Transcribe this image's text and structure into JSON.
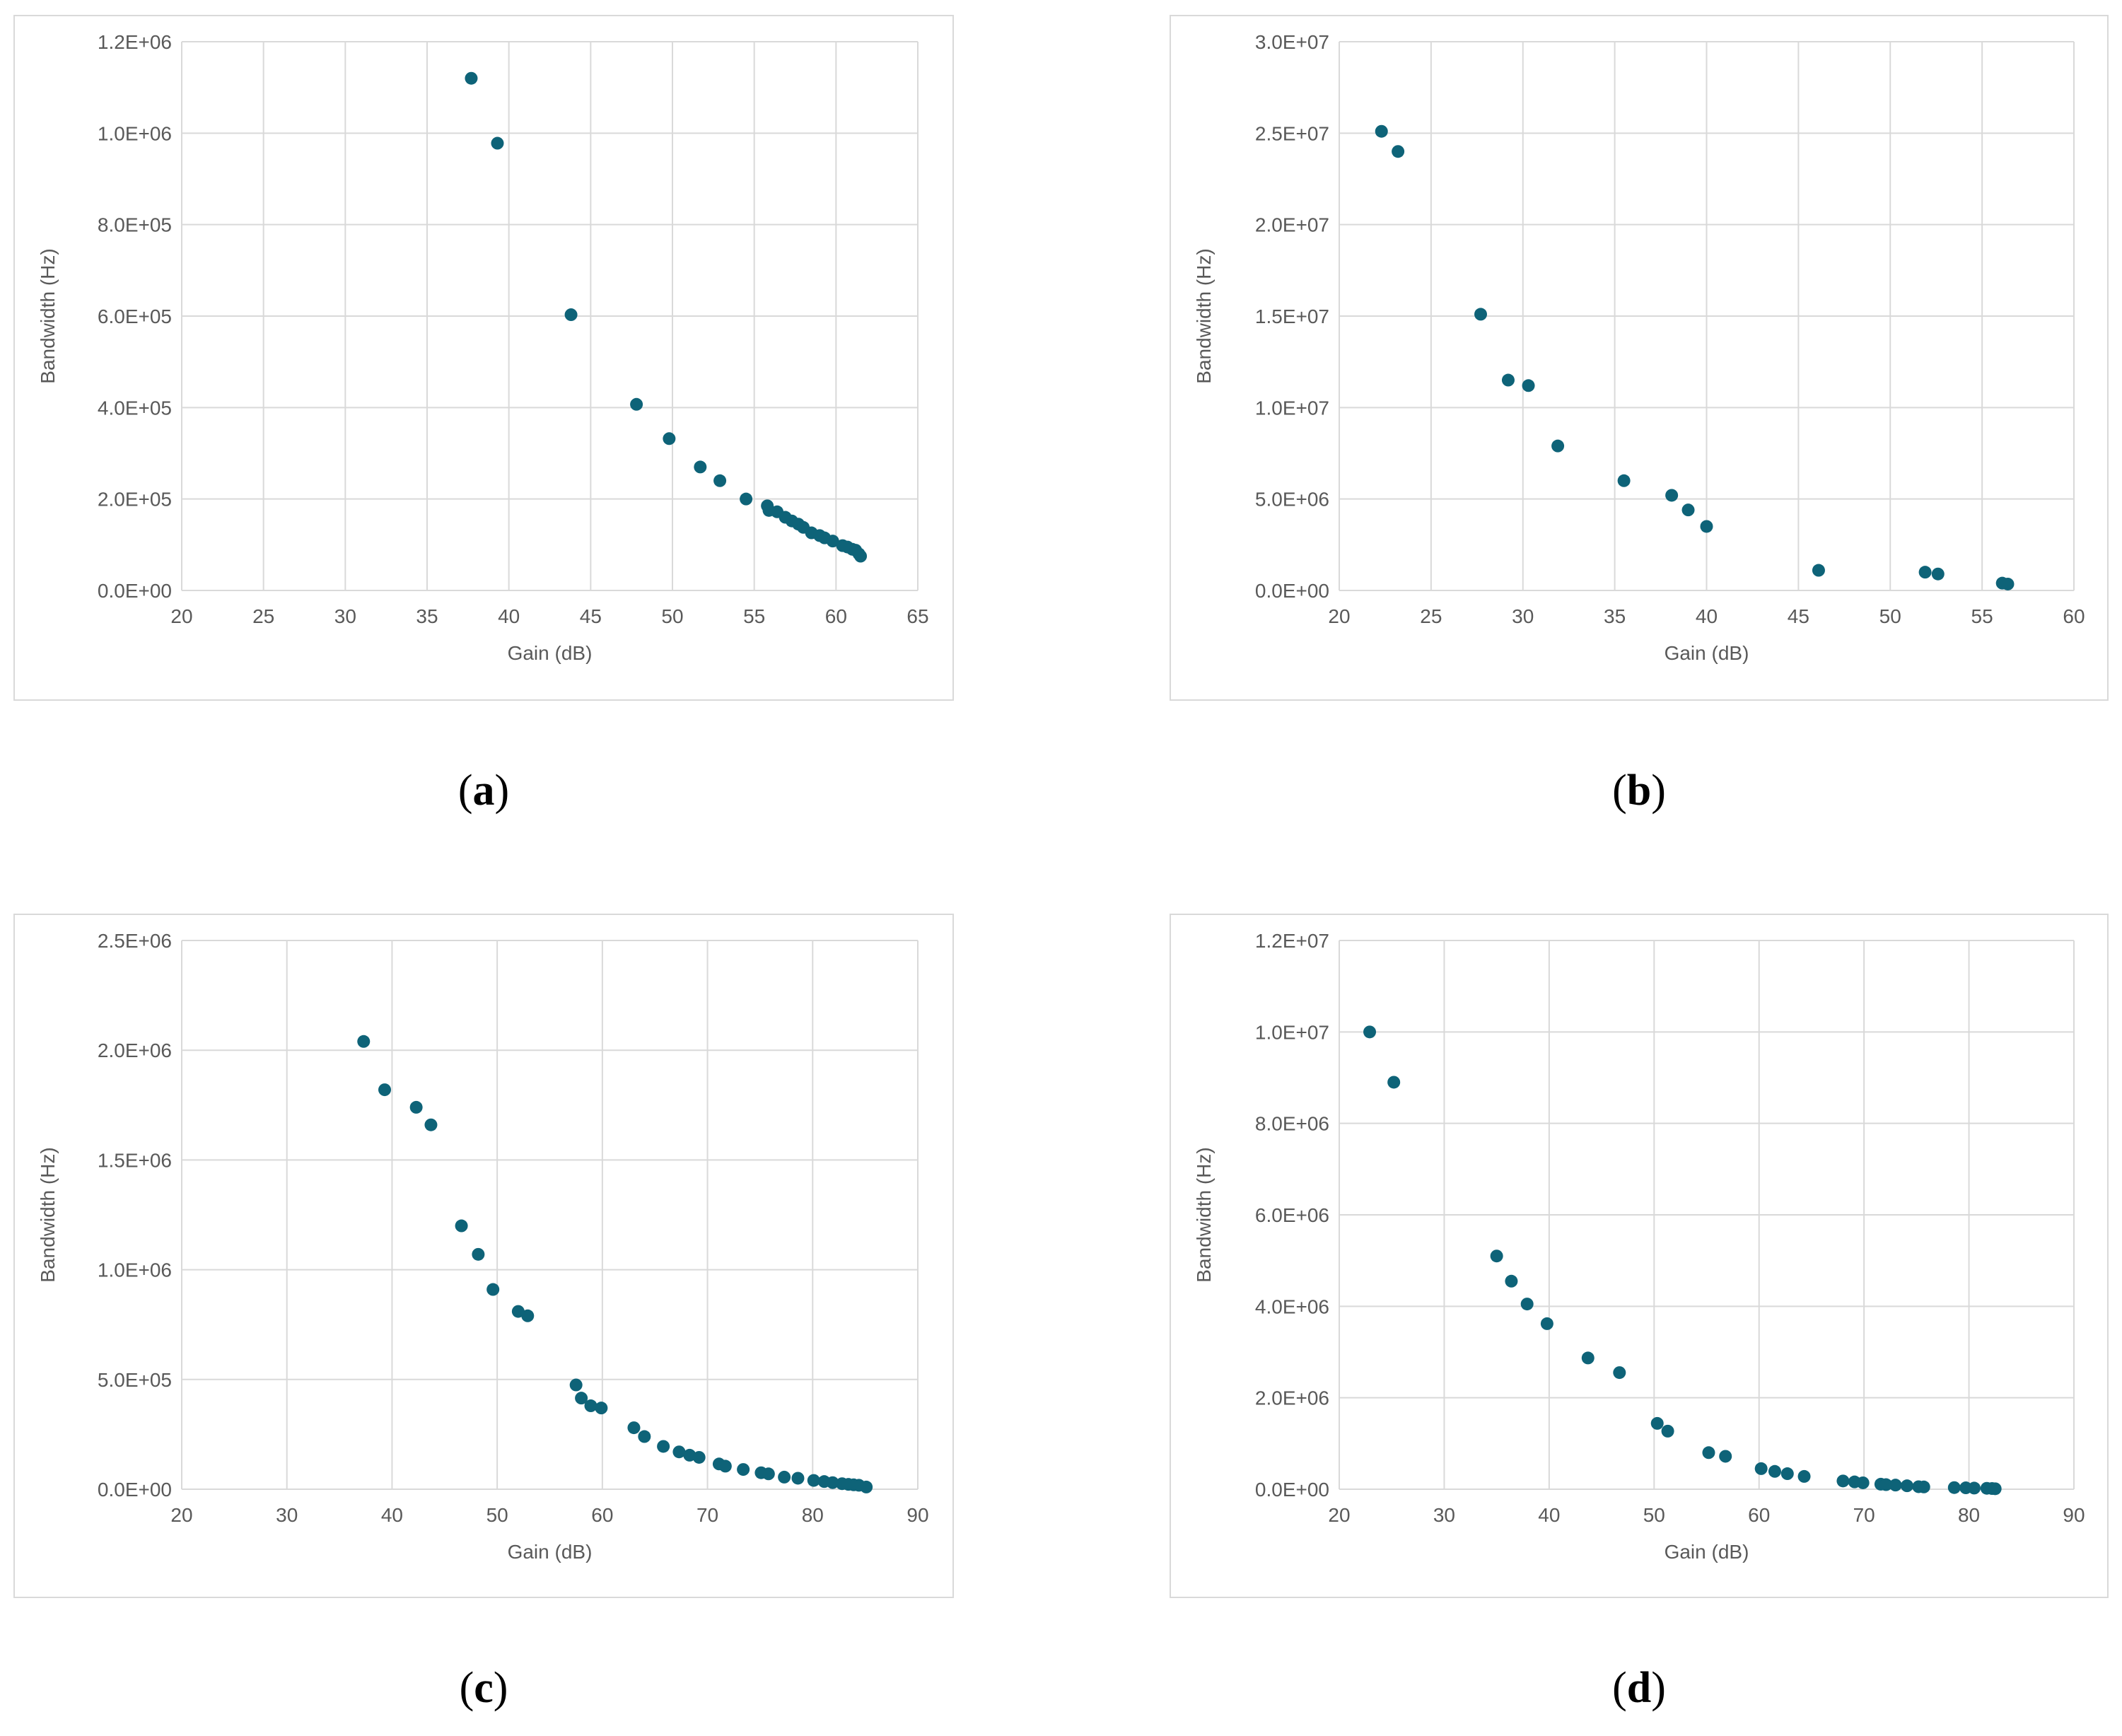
{
  "chart_data": [
    {
      "type": "scatter",
      "panel_label": "a",
      "xlabel": "Gain (dB)",
      "ylabel": "Bandwidth (Hz)",
      "xlim": [
        20,
        65
      ],
      "ylim": [
        0,
        1200000
      ],
      "xticks": [
        20,
        25,
        30,
        35,
        40,
        45,
        50,
        55,
        60,
        65
      ],
      "xtick_labels": [
        "20",
        "25",
        "30",
        "35",
        "40",
        "45",
        "50",
        "55",
        "60",
        "65"
      ],
      "yticks": [
        0,
        200000,
        400000,
        600000,
        800000,
        1000000,
        1200000
      ],
      "ytick_labels": [
        "0.0E+00",
        "2.0E+05",
        "4.0E+05",
        "6.0E+05",
        "8.0E+05",
        "1.0E+06",
        "1.2E+06"
      ],
      "grid": true,
      "marker_color": "#0e6378",
      "points": [
        [
          37.7,
          1120000
        ],
        [
          39.3,
          978000
        ],
        [
          43.8,
          603000
        ],
        [
          47.8,
          407000
        ],
        [
          49.8,
          332000
        ],
        [
          51.7,
          270000
        ],
        [
          52.9,
          240000
        ],
        [
          54.5,
          200000
        ],
        [
          55.8,
          185000
        ],
        [
          55.9,
          175000
        ],
        [
          56.4,
          172000
        ],
        [
          56.9,
          160000
        ],
        [
          57.3,
          152000
        ],
        [
          57.7,
          145000
        ],
        [
          58.0,
          138000
        ],
        [
          58.5,
          126000
        ],
        [
          59.0,
          120000
        ],
        [
          59.3,
          115000
        ],
        [
          59.8,
          108000
        ],
        [
          60.4,
          98000
        ],
        [
          60.7,
          95000
        ],
        [
          61.0,
          90000
        ],
        [
          61.2,
          88000
        ],
        [
          61.4,
          80000
        ],
        [
          61.5,
          75000
        ]
      ]
    },
    {
      "type": "scatter",
      "panel_label": "b",
      "xlabel": "Gain (dB)",
      "ylabel": "Bandwidth (Hz)",
      "xlim": [
        20,
        60
      ],
      "ylim": [
        0,
        30000000
      ],
      "xticks": [
        20,
        25,
        30,
        35,
        40,
        45,
        50,
        55,
        60
      ],
      "xtick_labels": [
        "20",
        "25",
        "30",
        "35",
        "40",
        "45",
        "50",
        "55",
        "60"
      ],
      "yticks": [
        0,
        5000000,
        10000000,
        15000000,
        20000000,
        25000000,
        30000000
      ],
      "ytick_labels": [
        "0.0E+00",
        "5.0E+06",
        "1.0E+07",
        "1.5E+07",
        "2.0E+07",
        "2.5E+07",
        "3.0E+07"
      ],
      "grid": true,
      "marker_color": "#0e6378",
      "points": [
        [
          22.3,
          25100000
        ],
        [
          23.2,
          24000000
        ],
        [
          27.7,
          15100000
        ],
        [
          29.2,
          11500000
        ],
        [
          30.3,
          11200000
        ],
        [
          31.9,
          7900000
        ],
        [
          35.5,
          6000000
        ],
        [
          38.1,
          5200000
        ],
        [
          39.0,
          4400000
        ],
        [
          40.0,
          3500000
        ],
        [
          46.1,
          1100000
        ],
        [
          51.9,
          1000000
        ],
        [
          52.6,
          900000
        ],
        [
          56.1,
          400000
        ],
        [
          56.4,
          350000
        ]
      ]
    },
    {
      "type": "scatter",
      "panel_label": "c",
      "xlabel": "Gain (dB)",
      "ylabel": "Bandwidth (Hz)",
      "xlim": [
        20,
        90
      ],
      "ylim": [
        0,
        2500000
      ],
      "xticks": [
        20,
        30,
        40,
        50,
        60,
        70,
        80,
        90
      ],
      "xtick_labels": [
        "20",
        "30",
        "40",
        "50",
        "60",
        "70",
        "80",
        "90"
      ],
      "yticks": [
        0,
        500000,
        1000000,
        1500000,
        2000000,
        2500000
      ],
      "ytick_labels": [
        "0.0E+00",
        "5.0E+05",
        "1.0E+06",
        "1.5E+06",
        "2.0E+06",
        "2.5E+06"
      ],
      "grid": true,
      "marker_color": "#0e6378",
      "points": [
        [
          37.3,
          2040000
        ],
        [
          39.3,
          1820000
        ],
        [
          42.3,
          1740000
        ],
        [
          43.7,
          1660000
        ],
        [
          46.6,
          1200000
        ],
        [
          48.2,
          1070000
        ],
        [
          49.6,
          910000
        ],
        [
          52.0,
          810000
        ],
        [
          52.9,
          790000
        ],
        [
          57.5,
          475000
        ],
        [
          58.0,
          415000
        ],
        [
          58.9,
          380000
        ],
        [
          59.9,
          370000
        ],
        [
          63.0,
          280000
        ],
        [
          64.0,
          240000
        ],
        [
          65.8,
          195000
        ],
        [
          67.3,
          170000
        ],
        [
          68.3,
          155000
        ],
        [
          69.2,
          145000
        ],
        [
          71.1,
          115000
        ],
        [
          71.7,
          105000
        ],
        [
          73.4,
          90000
        ],
        [
          75.1,
          75000
        ],
        [
          75.8,
          70000
        ],
        [
          77.3,
          55000
        ],
        [
          78.6,
          50000
        ],
        [
          80.1,
          40000
        ],
        [
          81.1,
          35000
        ],
        [
          81.9,
          30000
        ],
        [
          82.8,
          25000
        ],
        [
          83.4,
          22000
        ],
        [
          83.9,
          20000
        ],
        [
          84.4,
          18000
        ],
        [
          85.1,
          10000
        ]
      ]
    },
    {
      "type": "scatter",
      "panel_label": "d",
      "xlabel": "Gain (dB)",
      "ylabel": "Bandwidth (Hz)",
      "xlim": [
        20,
        90
      ],
      "ylim": [
        0,
        12000000
      ],
      "xticks": [
        20,
        30,
        40,
        50,
        60,
        70,
        80,
        90
      ],
      "xtick_labels": [
        "20",
        "30",
        "40",
        "50",
        "60",
        "70",
        "80",
        "90"
      ],
      "yticks": [
        0,
        2000000,
        4000000,
        6000000,
        8000000,
        10000000,
        12000000
      ],
      "ytick_labels": [
        "0.0E+00",
        "2.0E+06",
        "4.0E+06",
        "6.0E+06",
        "8.0E+06",
        "1.0E+07",
        "1.2E+07"
      ],
      "grid": true,
      "marker_color": "#0e6378",
      "points": [
        [
          22.9,
          10000000
        ],
        [
          25.2,
          8900000
        ],
        [
          35.0,
          5100000
        ],
        [
          36.4,
          4550000
        ],
        [
          37.9,
          4050000
        ],
        [
          39.8,
          3620000
        ],
        [
          43.7,
          2870000
        ],
        [
          46.7,
          2550000
        ],
        [
          50.3,
          1440000
        ],
        [
          51.3,
          1270000
        ],
        [
          55.2,
          800000
        ],
        [
          56.8,
          720000
        ],
        [
          60.2,
          450000
        ],
        [
          61.5,
          390000
        ],
        [
          62.7,
          340000
        ],
        [
          64.3,
          280000
        ],
        [
          68.0,
          180000
        ],
        [
          69.1,
          160000
        ],
        [
          69.9,
          140000
        ],
        [
          71.6,
          110000
        ],
        [
          72.1,
          100000
        ],
        [
          73.0,
          90000
        ],
        [
          74.1,
          75000
        ],
        [
          75.2,
          55000
        ],
        [
          75.7,
          50000
        ],
        [
          78.6,
          35000
        ],
        [
          79.7,
          30000
        ],
        [
          80.5,
          25000
        ],
        [
          81.7,
          20000
        ],
        [
          82.2,
          15000
        ],
        [
          82.5,
          10000
        ]
      ]
    }
  ]
}
